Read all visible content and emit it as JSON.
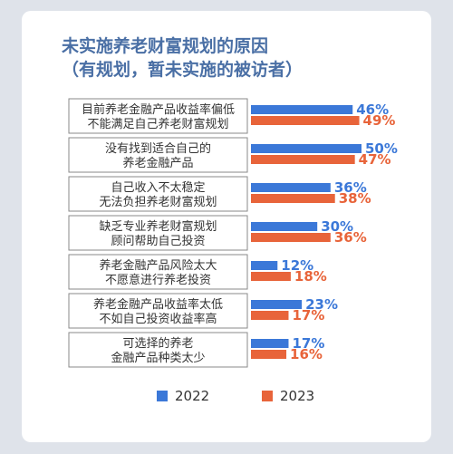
{
  "title_line1": "未实施养老财富规划的原因",
  "title_line2": "（有规划，暂未实施的被访者）",
  "colors": {
    "s2022": "#3b78d8",
    "s2023": "#e8643a",
    "box_border": "#8a8a8a"
  },
  "chart_data": {
    "type": "bar",
    "orientation": "horizontal",
    "title": "未实施养老财富规划的原因（有规划，暂未实施的被访者）",
    "categories": [
      [
        "目前养老金融产品收益率偏低",
        "不能满足自己养老财富规划"
      ],
      [
        "没有找到适合自己的",
        "养老金融产品"
      ],
      [
        "自己收入不太稳定",
        "无法负担养老财富规划"
      ],
      [
        "缺乏专业养老财富规划",
        "顾问帮助自己投资"
      ],
      [
        "养老金融产品风险太大",
        "不愿意进行养老投资"
      ],
      [
        "养老金融产品收益率太低",
        "不如自己投资收益率高"
      ],
      [
        "可选择的养老",
        "金融产品种类太少"
      ]
    ],
    "series": [
      {
        "name": "2022",
        "values": [
          46,
          50,
          36,
          30,
          12,
          23,
          17
        ],
        "labels": [
          "46%",
          "50%",
          "36%",
          "30%",
          "12%",
          "23%",
          "17%"
        ]
      },
      {
        "name": "2023",
        "values": [
          49,
          47,
          38,
          36,
          18,
          17,
          16
        ],
        "labels": [
          "49%",
          "47%",
          "38%",
          "36%",
          "18%",
          "17%",
          "16%"
        ]
      }
    ],
    "unit": "%",
    "legend_position": "bottom",
    "grid": false
  }
}
